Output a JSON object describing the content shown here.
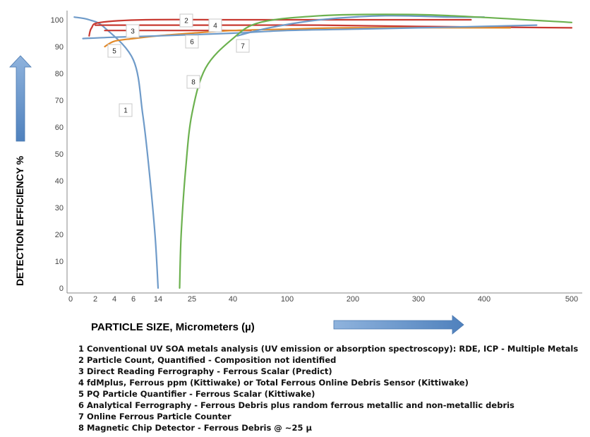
{
  "chart_data": {
    "type": "line",
    "xlabel": "PARTICLE SIZE, Micrometers (µ)",
    "ylabel": "DETECTION EFFICIENCY %",
    "x_ticks": [
      "0",
      "2",
      "4",
      "6",
      "14",
      "25",
      "40",
      "100",
      "200",
      "300",
      "400",
      "500"
    ],
    "y_ticks": [
      "0",
      "10",
      "20",
      "30",
      "40",
      "50",
      "60",
      "70",
      "80",
      "90",
      "100"
    ],
    "ylim": [
      0,
      100
    ],
    "xscale": "nonlinear (tick labels unevenly spaced)",
    "grid": false,
    "series": [
      {
        "name": "1",
        "color": "#6f9bc9",
        "points": [
          [
            0.3,
            101
          ],
          [
            1.5,
            100
          ],
          [
            3,
            97
          ],
          [
            6,
            85
          ],
          [
            9,
            65
          ],
          [
            11,
            45
          ],
          [
            13,
            20
          ],
          [
            14,
            0
          ]
        ]
      },
      {
        "name": "2",
        "color": "#c83a32",
        "points": [
          [
            1.5,
            94
          ],
          [
            1.7,
            97
          ],
          [
            2.5,
            99
          ],
          [
            10,
            100
          ],
          [
            40,
            100
          ],
          [
            150,
            100
          ],
          [
            380,
            100
          ]
        ]
      },
      {
        "name": "3",
        "color": "#c83a32",
        "points": [
          [
            3,
            96
          ],
          [
            60,
            96
          ]
        ]
      },
      {
        "name": "4",
        "color": "#c83a32",
        "points": [
          [
            2,
            98
          ],
          [
            10,
            98
          ],
          [
            60,
            98
          ],
          [
            150,
            98
          ],
          [
            300,
            97.5
          ],
          [
            500,
            97
          ]
        ]
      },
      {
        "name": "5",
        "color": "#e28a2a",
        "points": [
          [
            3,
            90
          ],
          [
            4,
            92
          ],
          [
            6,
            93
          ],
          [
            14,
            94
          ],
          [
            25,
            95
          ],
          [
            40,
            96
          ],
          [
            100,
            96.5
          ],
          [
            200,
            97
          ],
          [
            430,
            97
          ]
        ]
      },
      {
        "name": "6",
        "color": "#6f9bc9",
        "points": [
          [
            1,
            93
          ],
          [
            4,
            93.5
          ],
          [
            14,
            94
          ],
          [
            40,
            95
          ],
          [
            100,
            96
          ],
          [
            200,
            96.5
          ],
          [
            300,
            97
          ],
          [
            460,
            98
          ]
        ]
      },
      {
        "name": "7",
        "color": "#6f9bc9",
        "points": [
          [
            45,
            94
          ],
          [
            80,
            97
          ],
          [
            150,
            100
          ],
          [
            250,
            101.5
          ],
          [
            350,
            101
          ],
          [
            400,
            101
          ]
        ]
      },
      {
        "name": "8",
        "color": "#6cb14f",
        "points": [
          [
            21,
            0
          ],
          [
            21.5,
            20
          ],
          [
            23,
            45
          ],
          [
            25,
            65
          ],
          [
            30,
            82
          ],
          [
            40,
            93
          ],
          [
            70,
            99
          ],
          [
            150,
            101.5
          ],
          [
            250,
            102
          ],
          [
            350,
            101.5
          ],
          [
            500,
            99
          ]
        ]
      }
    ],
    "callouts": [
      "1",
      "2",
      "3",
      "4",
      "5",
      "6",
      "7",
      "8"
    ],
    "legend": [
      "1 Conventional UV SOA metals analysis (UV emission or absorption spectroscopy): RDE, ICP - Multiple Metals",
      "2 Particle Count, Quantified - Composition not identified",
      "3 Direct Reading Ferrography - Ferrous Scalar (Predict)",
      "4 fdMplus, Ferrous ppm (Kittiwake) or Total Ferrous Online Debris Sensor (Kittiwake)",
      "5 PQ Particle Quantifier - Ferrous Scalar (Kittiwake)",
      "6 Analytical Ferrography - Ferrous Debris plus random ferrous metallic and non-metallic debris",
      "7 Online Ferrous Particle Counter",
      "8 Magnetic Chip Detector - Ferrous Debris @ ~25 µ"
    ]
  }
}
